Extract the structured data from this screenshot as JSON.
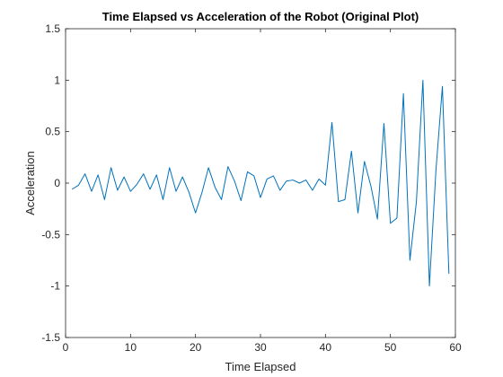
{
  "chart_data": {
    "type": "line",
    "title": "Time Elapsed vs Acceleration of the Robot (Original Plot)",
    "xlabel": "Time Elapsed",
    "ylabel": "Acceleration",
    "xlim": [
      0,
      60
    ],
    "ylim": [
      -1.5,
      1.5
    ],
    "xticks": [
      0,
      10,
      20,
      30,
      40,
      50,
      60
    ],
    "xtick_labels": [
      "0",
      "10",
      "20",
      "30",
      "40",
      "50",
      "60"
    ],
    "yticks": [
      1.5,
      1,
      0.5,
      0,
      -0.5,
      -1,
      -1.5
    ],
    "ytick_labels": [
      "1.5",
      "1",
      "0.5",
      "0",
      "-0.5",
      "-1",
      "-1.5"
    ],
    "grid": false,
    "line_color": "#0072BD",
    "series": [
      {
        "x": [
          1,
          2,
          3,
          4,
          5,
          6,
          7,
          8,
          9,
          10,
          11,
          12,
          13,
          14,
          15,
          16,
          17,
          18,
          19,
          20,
          21,
          22,
          23,
          24,
          25,
          26,
          27,
          28,
          29,
          30,
          31,
          32,
          33,
          34,
          35,
          36,
          37,
          38,
          39,
          40,
          41,
          42,
          43,
          44,
          45,
          46,
          47,
          48,
          49,
          50,
          51,
          52,
          53,
          54,
          55,
          56,
          57,
          58,
          59
        ],
        "values": [
          -0.06,
          -0.02,
          0.09,
          -0.08,
          0.08,
          -0.16,
          0.15,
          -0.07,
          0.06,
          -0.08,
          -0.01,
          0.09,
          -0.06,
          0.08,
          -0.16,
          0.15,
          -0.08,
          0.06,
          -0.09,
          -0.29,
          -0.09,
          0.15,
          -0.04,
          -0.16,
          0.16,
          0.02,
          -0.17,
          0.11,
          0.07,
          -0.14,
          0.04,
          0.07,
          -0.07,
          0.02,
          0.03,
          0.0,
          0.03,
          -0.07,
          0.04,
          -0.02,
          0.59,
          -0.18,
          -0.16,
          0.31,
          -0.29,
          0.21,
          -0.03,
          -0.35,
          0.58,
          -0.39,
          -0.34,
          0.87,
          -0.75,
          -0.18,
          1.0,
          -1.0,
          0.12,
          0.94,
          -0.88
        ]
      }
    ]
  }
}
